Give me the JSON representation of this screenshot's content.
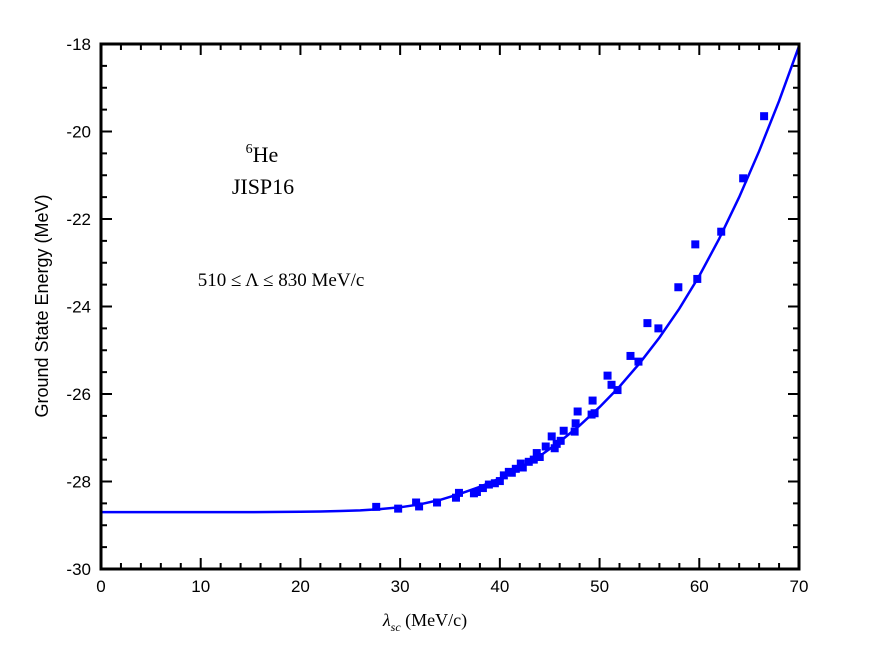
{
  "chart_data": {
    "type": "scatter",
    "xlabel": {
      "main": "λ",
      "sub": "sc",
      "rest": " (MeV/c)"
    },
    "ylabel": "Ground State Energy (MeV)",
    "xlim": [
      0,
      70
    ],
    "ylim": [
      -30,
      -18
    ],
    "x_ticks": [
      0,
      10,
      20,
      30,
      40,
      50,
      60,
      70
    ],
    "x_tick_labels": [
      "0",
      "10",
      "20",
      "30",
      "40",
      "50",
      "60",
      "70"
    ],
    "y_ticks": [
      -30,
      -28,
      -26,
      -24,
      -22,
      -20,
      -18
    ],
    "y_tick_labels": [
      "-30",
      "-28",
      "-26",
      "-24",
      "-22",
      "-20",
      "-18"
    ],
    "grid": false,
    "annotations": {
      "nucleus_mass": "6",
      "nucleus_symbol": "He",
      "interaction": "JISP16",
      "range": "510 ≤ Λ ≤ 830 MeV/c"
    },
    "series": [
      {
        "kind": "points",
        "marker": "square",
        "color": "#0000ff",
        "x": [
          27.6,
          29.8,
          31.6,
          31.9,
          33.7,
          35.6,
          35.9,
          37.4,
          37.7,
          38.3,
          38.9,
          39.5,
          40.0,
          40.4,
          40.9,
          41.2,
          41.6,
          42.1,
          42.3,
          42.9,
          43.4,
          43.7,
          44.0,
          44.6,
          45.2,
          45.5,
          45.7,
          46.1,
          46.4,
          47.5,
          47.6,
          47.8,
          49.2,
          49.3,
          49.5,
          50.8,
          51.2,
          51.8,
          53.1,
          53.9,
          54.8,
          55.9,
          57.9,
          59.6,
          59.8,
          62.2,
          64.4,
          66.5
        ],
        "y": [
          -28.58,
          -28.62,
          -28.48,
          -28.57,
          -28.48,
          -28.37,
          -28.26,
          -28.27,
          -28.24,
          -28.15,
          -28.07,
          -28.04,
          -27.99,
          -27.86,
          -27.78,
          -27.8,
          -27.71,
          -27.59,
          -27.68,
          -27.55,
          -27.5,
          -27.35,
          -27.44,
          -27.2,
          -26.97,
          -27.24,
          -27.14,
          -27.07,
          -26.84,
          -26.86,
          -26.67,
          -26.4,
          -26.47,
          -26.15,
          -26.44,
          -25.58,
          -25.79,
          -25.91,
          -25.13,
          -25.26,
          -24.38,
          -24.5,
          -23.56,
          -22.58,
          -23.37,
          -22.29,
          -21.07,
          -19.65
        ]
      },
      {
        "kind": "line",
        "color": "#0000ff",
        "x": [
          0,
          5,
          10,
          15,
          20,
          22,
          24,
          26,
          28,
          30,
          32,
          34,
          36,
          38,
          40,
          42,
          44,
          46,
          48,
          50,
          52,
          54,
          56,
          58,
          60,
          62,
          64,
          66,
          68,
          70
        ],
        "y": [
          -28.7,
          -28.7,
          -28.7,
          -28.7,
          -28.69,
          -28.685,
          -28.675,
          -28.66,
          -28.63,
          -28.59,
          -28.52,
          -28.42,
          -28.28,
          -28.12,
          -27.93,
          -27.7,
          -27.42,
          -27.09,
          -26.72,
          -26.3,
          -25.83,
          -25.3,
          -24.71,
          -24.05,
          -23.3,
          -22.45,
          -21.5,
          -20.45,
          -19.3,
          -18.05
        ]
      }
    ]
  }
}
